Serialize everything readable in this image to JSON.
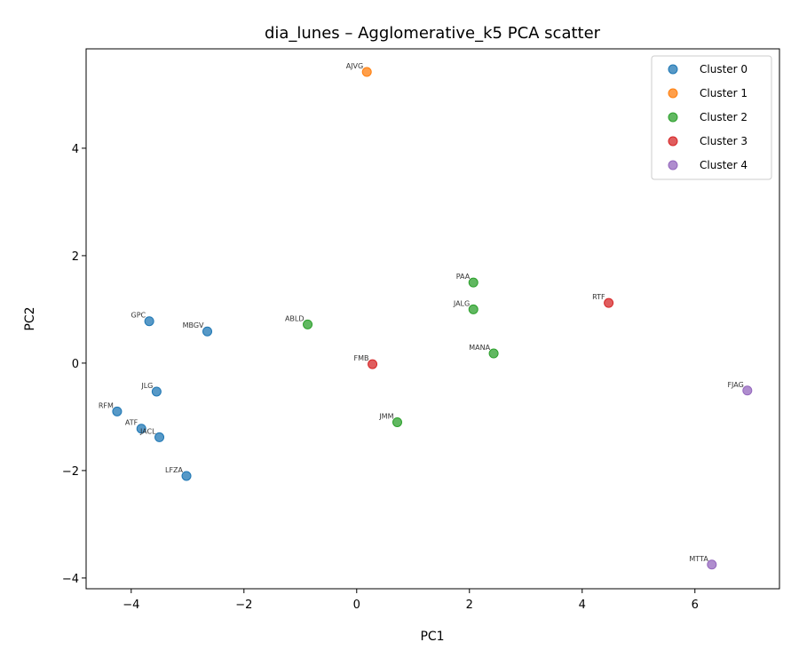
{
  "chart_data": {
    "type": "scatter",
    "title": "dia_lunes – Agglomerative_k5 PCA scatter",
    "xlabel": "PC1",
    "ylabel": "PC2",
    "xlim": [
      -4.8,
      7.5
    ],
    "ylim": [
      -4.2,
      5.85
    ],
    "xticks": [
      -4,
      -2,
      0,
      2,
      4,
      6
    ],
    "yticks": [
      -4,
      -2,
      0,
      2,
      4
    ],
    "grid": false,
    "legend_position": "top-right",
    "series": [
      {
        "name": "Cluster 0",
        "color": "#1f77b4",
        "points": [
          {
            "label": "GPC",
            "x": -3.68,
            "y": 0.78
          },
          {
            "label": "MBGV",
            "x": -2.65,
            "y": 0.59
          },
          {
            "label": "JLG",
            "x": -3.55,
            "y": -0.53
          },
          {
            "label": "RFM",
            "x": -4.25,
            "y": -0.9
          },
          {
            "label": "ATF",
            "x": -3.82,
            "y": -1.22
          },
          {
            "label": "JACL",
            "x": -3.5,
            "y": -1.38
          },
          {
            "label": "LFZA",
            "x": -3.02,
            "y": -2.1
          }
        ]
      },
      {
        "name": "Cluster 1",
        "color": "#ff7f0e",
        "points": [
          {
            "label": "AJVG",
            "x": 0.18,
            "y": 5.42
          }
        ]
      },
      {
        "name": "Cluster 2",
        "color": "#2ca02c",
        "points": [
          {
            "label": "PAA",
            "x": 2.07,
            "y": 1.5
          },
          {
            "label": "JALG",
            "x": 2.07,
            "y": 1.0
          },
          {
            "label": "ABLD",
            "x": -0.87,
            "y": 0.72
          },
          {
            "label": "MANA",
            "x": 2.43,
            "y": 0.18
          },
          {
            "label": "JMM",
            "x": 0.72,
            "y": -1.1
          }
        ]
      },
      {
        "name": "Cluster 3",
        "color": "#d62728",
        "points": [
          {
            "label": "RTF",
            "x": 4.47,
            "y": 1.12
          },
          {
            "label": "FMB",
            "x": 0.28,
            "y": -0.02
          }
        ]
      },
      {
        "name": "Cluster 4",
        "color": "#9467bd",
        "points": [
          {
            "label": "FJAG",
            "x": 6.93,
            "y": -0.51
          },
          {
            "label": "MTTA",
            "x": 6.3,
            "y": -3.75
          }
        ]
      }
    ]
  }
}
